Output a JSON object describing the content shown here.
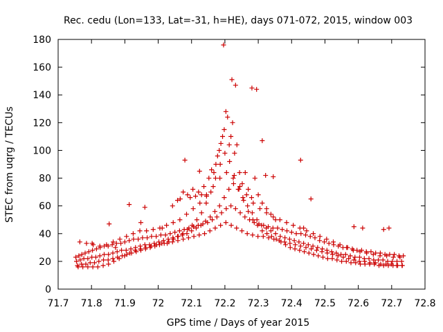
{
  "chart_data": {
    "type": "scatter",
    "title": "Rec. cedu (Lon=133, Lat=-31, h=HE), days 071-072, 2015, window 003",
    "xlabel": "GPS time / Days of year 2015",
    "ylabel": "STEC from uqrg / TECUs",
    "xlim": [
      71.7,
      72.8
    ],
    "ylim": [
      0,
      180
    ],
    "x_ticks": [
      "71.7",
      "71.8",
      "71.9",
      "72",
      "72.1",
      "72.2",
      "72.3",
      "72.4",
      "72.5",
      "72.6",
      "72.7",
      "72.8"
    ],
    "y_ticks": [
      "0",
      "20",
      "40",
      "60",
      "80",
      "100",
      "120",
      "140",
      "160",
      "180"
    ],
    "grid": false,
    "marker": "+",
    "color": "#cc0000",
    "series": [
      {
        "x": [
          71.753,
          71.762,
          71.771,
          71.781,
          71.792,
          71.803,
          71.815,
          71.826,
          71.838,
          71.85,
          71.862,
          71.875,
          71.888,
          71.9,
          71.913,
          71.926,
          71.94,
          71.953,
          71.967,
          71.98,
          71.994,
          72.008,
          72.022,
          72.036,
          72.05,
          72.064,
          72.078,
          72.092,
          72.106,
          72.12,
          72.134,
          72.148,
          72.162,
          72.176,
          72.19,
          72.204,
          72.218,
          72.232,
          72.246,
          72.26,
          72.274,
          72.288,
          72.302,
          72.316,
          72.33,
          72.344,
          72.358,
          72.372,
          72.386,
          72.4,
          72.414,
          72.428,
          72.442,
          72.456,
          72.47,
          72.484,
          72.498,
          72.512,
          72.526,
          72.54,
          72.554,
          72.568,
          72.582,
          72.596,
          72.61,
          72.624,
          72.638,
          72.652,
          72.666,
          72.68,
          72.694,
          72.708,
          72.722,
          72.735,
          71.755,
          71.766,
          71.777,
          71.789,
          71.801,
          71.813,
          71.825,
          71.838,
          71.851,
          71.864,
          71.877,
          71.89,
          71.904,
          71.918,
          71.932,
          71.946,
          71.96,
          71.974,
          71.988,
          72.002,
          72.016,
          72.03,
          72.044,
          72.058,
          72.072,
          72.086,
          72.1,
          72.114,
          72.128,
          72.142,
          72.156,
          72.17,
          72.184,
          72.198,
          72.212,
          72.226,
          72.24,
          72.254,
          72.268,
          72.282,
          72.296,
          72.31,
          72.324,
          72.338,
          72.352,
          72.366,
          72.38,
          72.394,
          72.408,
          72.422,
          72.436,
          72.45,
          72.464,
          72.478,
          72.492,
          72.506,
          72.52,
          72.534,
          72.548,
          72.562,
          72.576,
          72.59,
          72.604,
          72.618,
          72.632,
          72.646,
          72.66,
          72.674,
          72.688,
          72.702,
          72.716,
          72.73,
          71.758,
          71.77,
          71.783,
          71.796,
          71.809,
          71.822,
          71.836,
          71.85,
          71.864,
          71.878,
          71.892,
          71.906,
          71.92,
          71.934,
          71.948,
          71.962,
          71.976,
          71.99,
          72.004,
          72.018,
          72.032,
          72.046,
          72.06,
          72.074,
          72.088,
          72.102,
          72.116,
          72.13,
          72.144,
          72.158,
          72.172,
          72.186,
          72.2,
          72.214,
          72.228,
          72.242,
          72.256,
          72.27,
          72.284,
          72.298,
          72.312,
          72.326,
          72.34,
          72.354,
          72.368,
          72.382,
          72.396,
          72.41,
          72.424,
          72.438,
          72.452,
          72.466,
          72.48,
          72.494,
          72.508,
          72.522,
          72.536,
          72.55,
          72.564,
          72.578,
          72.592,
          72.606,
          72.62,
          72.634,
          72.648,
          72.662,
          72.676,
          72.69,
          72.704,
          72.718,
          72.732,
          71.76,
          71.774,
          71.789,
          71.804,
          71.819,
          71.835,
          71.851,
          71.867,
          71.883,
          71.899,
          71.915,
          71.931,
          71.947,
          71.963,
          71.979,
          71.995,
          72.011,
          72.027,
          72.043,
          72.059,
          72.075,
          72.091,
          72.107,
          72.123,
          72.139,
          72.155,
          72.171,
          72.187,
          72.203,
          72.219,
          72.235,
          72.251,
          72.267,
          72.283,
          72.299,
          72.315,
          72.331,
          72.347,
          72.363,
          72.379,
          72.395,
          72.411,
          72.427,
          72.443,
          72.459,
          72.475,
          72.491,
          72.507,
          72.523,
          72.539,
          72.555,
          72.571,
          72.587,
          72.603,
          72.619,
          72.635,
          72.651,
          72.667,
          72.683,
          72.699,
          72.715,
          72.731,
          71.765,
          71.785,
          71.805,
          71.825,
          71.845,
          71.865,
          71.885,
          71.905,
          71.925,
          71.945,
          71.965,
          71.985,
          72.005,
          72.025,
          72.045,
          72.065,
          72.085,
          72.105,
          72.125,
          72.145,
          72.165,
          72.185,
          72.205,
          72.225,
          72.245,
          72.265,
          72.285,
          72.305,
          72.325,
          72.345,
          72.365,
          72.385,
          72.405,
          72.425,
          72.445,
          72.465,
          72.485,
          72.505,
          72.525,
          72.545,
          72.565,
          72.585,
          72.605,
          72.625,
          72.645,
          72.665,
          72.685,
          72.705,
          72.725,
          72.043,
          72.058,
          72.066,
          72.075,
          72.088,
          72.096,
          72.104,
          72.112,
          72.121,
          72.13,
          72.137,
          72.145,
          72.152,
          72.16,
          72.167,
          72.173,
          72.178,
          72.183,
          72.188,
          72.193,
          72.198,
          72.203,
          72.208,
          72.213,
          72.218,
          72.223,
          72.229,
          72.236,
          72.244,
          72.252,
          72.261,
          72.27,
          72.28,
          72.29,
          72.3,
          72.312,
          72.325,
          72.338,
          72.352,
          71.802,
          71.853,
          71.872,
          71.913,
          71.948,
          71.96,
          72.012,
          72.08,
          72.124,
          72.196,
          72.221,
          72.232,
          72.281,
          72.295,
          72.312,
          72.322,
          72.345,
          72.427,
          72.436,
          72.458,
          72.587,
          72.613,
          72.676,
          72.692
        ],
        "y": [
          23,
          24,
          25,
          26,
          27,
          28,
          29,
          30,
          31,
          31,
          32,
          33,
          33,
          34,
          35,
          36,
          36,
          37,
          37,
          38,
          38,
          39,
          39,
          40,
          41,
          42,
          43,
          44,
          45,
          46,
          47,
          48,
          50,
          52,
          55,
          58,
          60,
          58,
          55,
          52,
          50,
          48,
          47,
          46,
          45,
          44,
          44,
          43,
          42,
          41,
          40,
          40,
          39,
          38,
          37,
          35,
          34,
          33,
          32,
          31,
          30,
          30,
          29,
          28,
          28,
          27,
          27,
          26,
          26,
          25,
          25,
          25,
          24,
          24,
          20,
          21,
          22,
          22,
          23,
          23,
          24,
          25,
          25,
          26,
          27,
          28,
          28,
          29,
          30,
          31,
          32,
          32,
          33,
          34,
          35,
          36,
          37,
          38,
          39,
          40,
          42,
          44,
          46,
          49,
          52,
          56,
          60,
          66,
          72,
          76,
          72,
          66,
          60,
          55,
          50,
          46,
          44,
          42,
          40,
          38,
          37,
          36,
          35,
          34,
          33,
          32,
          31,
          30,
          29,
          28,
          27,
          26,
          25,
          25,
          24,
          23,
          23,
          22,
          22,
          21,
          21,
          21,
          20,
          20,
          20,
          20,
          17,
          18,
          18,
          19,
          19,
          20,
          21,
          21,
          22,
          23,
          24,
          25,
          26,
          27,
          28,
          29,
          30,
          31,
          32,
          33,
          34,
          36,
          38,
          40,
          43,
          46,
          50,
          55,
          62,
          70,
          80,
          90,
          98,
          92,
          82,
          72,
          64,
          56,
          50,
          46,
          42,
          40,
          38,
          36,
          34,
          32,
          30,
          29,
          28,
          27,
          26,
          25,
          24,
          23,
          22,
          22,
          21,
          20,
          20,
          19,
          19,
          18,
          18,
          18,
          18,
          17,
          17,
          17,
          17,
          17,
          17,
          16,
          16,
          16,
          16,
          16,
          17,
          18,
          20,
          22,
          24,
          26,
          28,
          29,
          30,
          31,
          32,
          33,
          33,
          34,
          35,
          36,
          37,
          38,
          39,
          40,
          42,
          44,
          46,
          48,
          46,
          44,
          42,
          40,
          39,
          38,
          38,
          37,
          36,
          35,
          34,
          33,
          32,
          31,
          30,
          29,
          28,
          27,
          26,
          25,
          24,
          23,
          22,
          21,
          20,
          20,
          19,
          19,
          18,
          18,
          18,
          17,
          17,
          34,
          33,
          32,
          31,
          32,
          34,
          36,
          38,
          40,
          42,
          42,
          43,
          44,
          46,
          48,
          50,
          54,
          58,
          62,
          68,
          74,
          80,
          84,
          80,
          74,
          68,
          62,
          58,
          55,
          52,
          50,
          48,
          46,
          44,
          42,
          40,
          38,
          36,
          34,
          32,
          30,
          28,
          27,
          26,
          25,
          24,
          24,
          23,
          23,
          60,
          64,
          65,
          70,
          68,
          66,
          72,
          67,
          70,
          68,
          74,
          67,
          80,
          86,
          84,
          90,
          96,
          100,
          105,
          110,
          115,
          128,
          124,
          104,
          110,
          120,
          98,
          104,
          84,
          76,
          84,
          72,
          66,
          80,
          68,
          62,
          58,
          54,
          50,
          33,
          47,
          30,
          61,
          48,
          59,
          44,
          93,
          85,
          176,
          151,
          147,
          145,
          144,
          107,
          82,
          81,
          93,
          44,
          65,
          45,
          44,
          43,
          44
        ]
      }
    ]
  }
}
